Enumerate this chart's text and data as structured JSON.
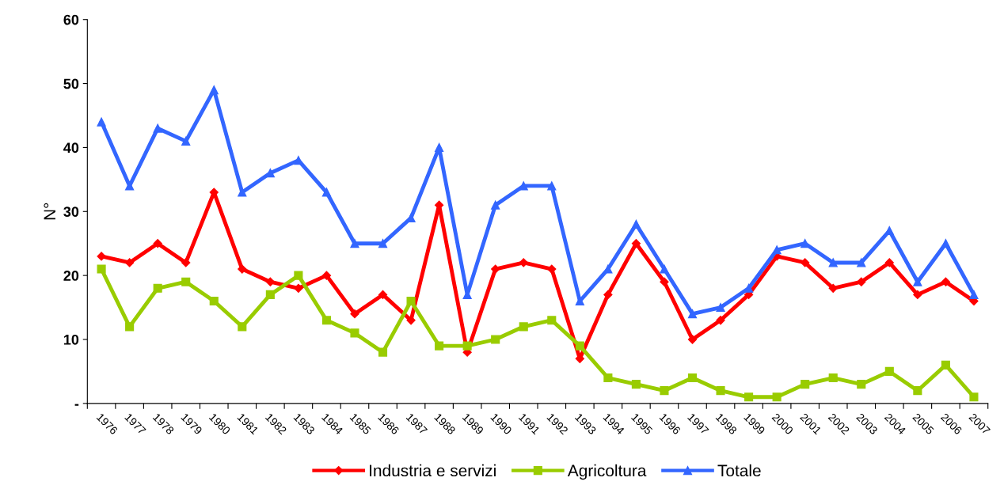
{
  "chart_data": {
    "type": "line",
    "ylabel": "N°",
    "categories": [
      "1976",
      "1977",
      "1978",
      "1979",
      "1980",
      "1981",
      "1982",
      "1983",
      "1984",
      "1985",
      "1986",
      "1987",
      "1988",
      "1989",
      "1990",
      "1991",
      "1992",
      "1993",
      "1994",
      "1995",
      "1996",
      "1997",
      "1998",
      "1999",
      "2000",
      "2001",
      "2002",
      "2003",
      "2004",
      "2005",
      "2006",
      "2007"
    ],
    "series": [
      {
        "name": "Industria e servizi",
        "color": "#ff0000",
        "marker": "diamond",
        "values": [
          23,
          22,
          25,
          22,
          33,
          21,
          19,
          18,
          20,
          14,
          17,
          13,
          31,
          8,
          21,
          22,
          21,
          7,
          17,
          25,
          19,
          10,
          13,
          17,
          23,
          22,
          18,
          19,
          22,
          17,
          19,
          16
        ]
      },
      {
        "name": "Agricoltura",
        "color": "#99cc00",
        "marker": "square",
        "values": [
          21,
          12,
          18,
          19,
          16,
          12,
          17,
          20,
          13,
          11,
          8,
          16,
          9,
          9,
          10,
          12,
          13,
          9,
          4,
          3,
          2,
          4,
          2,
          1,
          1,
          3,
          4,
          3,
          5,
          2,
          6,
          1
        ]
      },
      {
        "name": "Totale",
        "color": "#3366ff",
        "marker": "triangle",
        "values": [
          44,
          34,
          43,
          41,
          49,
          33,
          36,
          38,
          33,
          25,
          25,
          29,
          40,
          17,
          31,
          34,
          34,
          16,
          21,
          28,
          21,
          14,
          15,
          18,
          24,
          25,
          22,
          22,
          27,
          19,
          25,
          17
        ]
      }
    ],
    "ylim": [
      0,
      60
    ],
    "yticks": [
      {
        "value": 0,
        "label": "-"
      },
      10,
      20,
      30,
      40,
      50,
      60
    ],
    "grid": false,
    "legend": "bottom",
    "line_style": "solid"
  }
}
